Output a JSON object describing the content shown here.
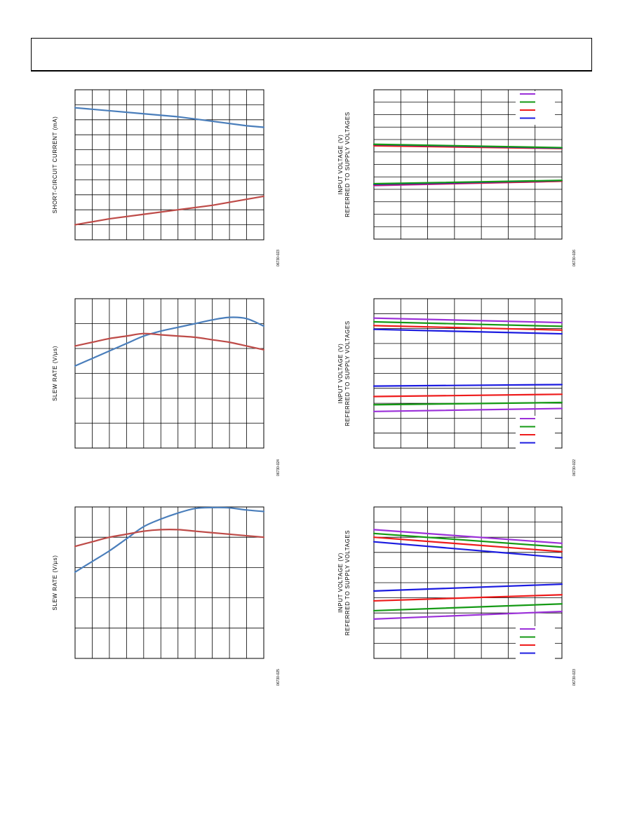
{
  "page": {
    "header_text": ""
  },
  "colors": {
    "blue": "#4a7ebb",
    "red": "#be4b48",
    "purple": "#9b30d9",
    "green": "#159a15",
    "bright_red": "#ee1c1c",
    "navy": "#1c1ce0",
    "grid": "#000000"
  },
  "chart_data": [
    {
      "id": "short-circuit-current",
      "type": "line",
      "title": "",
      "xlabel": "",
      "ylabel": "SHORT-CIRCUIT CURRENT (mA)",
      "figure_code": "06730-023",
      "grid": true,
      "x_divisions": 11,
      "y_divisions": 10,
      "xlim": [
        0,
        11
      ],
      "ylim": [
        0,
        10
      ],
      "series": [
        {
          "color": "blue",
          "x": [
            0,
            2,
            4,
            6,
            8,
            10,
            11
          ],
          "y": [
            8.8,
            8.6,
            8.4,
            8.2,
            7.9,
            7.6,
            7.5
          ]
        },
        {
          "color": "red",
          "x": [
            0,
            2,
            4,
            6,
            8,
            10,
            11
          ],
          "y": [
            1.0,
            1.4,
            1.7,
            2.0,
            2.3,
            2.7,
            2.9
          ]
        }
      ]
    },
    {
      "id": "slew-rate-1",
      "type": "line",
      "title": "",
      "xlabel": "",
      "ylabel": "SLEW RATE (V/µs)",
      "figure_code": "06730-024",
      "grid": true,
      "x_divisions": 11,
      "y_divisions": 6,
      "xlim": [
        0,
        11
      ],
      "ylim": [
        0,
        6
      ],
      "series": [
        {
          "color": "blue",
          "x": [
            0,
            1,
            2,
            3,
            4,
            5,
            6,
            7,
            8,
            9,
            10,
            11
          ],
          "y": [
            3.3,
            3.6,
            3.9,
            4.2,
            4.5,
            4.7,
            4.85,
            5.0,
            5.15,
            5.25,
            5.2,
            4.9
          ]
        },
        {
          "color": "red",
          "x": [
            0,
            1,
            2,
            3,
            4,
            5,
            6,
            7,
            8,
            9,
            10,
            11
          ],
          "y": [
            4.1,
            4.25,
            4.4,
            4.5,
            4.6,
            4.55,
            4.5,
            4.45,
            4.35,
            4.25,
            4.1,
            3.95
          ]
        }
      ]
    },
    {
      "id": "slew-rate-2",
      "type": "line",
      "title": "",
      "xlabel": "",
      "ylabel": "SLEW RATE (V/µs)",
      "figure_code": "06730-025",
      "grid": true,
      "x_divisions": 11,
      "y_divisions": 5,
      "xlim": [
        0,
        11
      ],
      "ylim": [
        0,
        5
      ],
      "series": [
        {
          "color": "blue",
          "x": [
            0,
            1,
            2,
            3,
            4,
            5,
            6,
            7,
            8,
            9,
            10,
            11
          ],
          "y": [
            2.85,
            3.2,
            3.55,
            3.95,
            4.35,
            4.6,
            4.8,
            4.95,
            4.98,
            4.97,
            4.9,
            4.85
          ]
        },
        {
          "color": "red",
          "x": [
            0,
            1,
            2,
            3,
            4,
            5,
            6,
            7,
            8,
            9,
            10,
            11
          ],
          "y": [
            3.7,
            3.85,
            4.0,
            4.1,
            4.2,
            4.25,
            4.25,
            4.2,
            4.15,
            4.1,
            4.05,
            4.0
          ]
        }
      ]
    },
    {
      "id": "input-voltage-1",
      "type": "line",
      "title": "",
      "xlabel": "",
      "ylabel": "INPUT VOLTAGE (V)\nREFERRED TO SUPPLY VOLTAGES",
      "figure_code": "06730-026",
      "grid": true,
      "x_divisions": 7,
      "y_divisions": 12,
      "xlim": [
        0,
        7
      ],
      "ylim": [
        0,
        12
      ],
      "legend": {
        "position": "top-right",
        "colors": [
          "purple",
          "green",
          "bright_red",
          "navy"
        ],
        "labels": [
          "",
          "",
          "",
          ""
        ]
      },
      "series": [
        {
          "color": "purple",
          "x": [
            0,
            7
          ],
          "y": [
            7.55,
            7.3
          ]
        },
        {
          "color": "bright_red",
          "x": [
            0,
            7
          ],
          "y": [
            7.5,
            7.28
          ]
        },
        {
          "color": "navy",
          "x": [
            0,
            7
          ],
          "y": [
            7.6,
            7.32
          ]
        },
        {
          "color": "green",
          "x": [
            0,
            7
          ],
          "y": [
            7.62,
            7.35
          ]
        },
        {
          "color": "purple",
          "x": [
            0,
            7
          ],
          "y": [
            4.3,
            4.65
          ]
        },
        {
          "color": "bright_red",
          "x": [
            0,
            7
          ],
          "y": [
            4.35,
            4.65
          ]
        },
        {
          "color": "navy",
          "x": [
            0,
            7
          ],
          "y": [
            4.4,
            4.7
          ]
        },
        {
          "color": "green",
          "x": [
            0,
            7
          ],
          "y": [
            4.45,
            4.72
          ]
        }
      ]
    },
    {
      "id": "input-voltage-2",
      "type": "line",
      "title": "",
      "xlabel": "",
      "ylabel": "INPUT VOLTAGE (V)\nREFERRED TO SUPPLY VOLTAGES",
      "figure_code": "06730-022",
      "grid": true,
      "x_divisions": 7,
      "y_divisions": 10,
      "xlim": [
        0,
        7
      ],
      "ylim": [
        0,
        10
      ],
      "legend": {
        "position": "bottom-right",
        "colors": [
          "purple",
          "green",
          "bright_red",
          "navy"
        ],
        "labels": [
          "",
          "",
          "",
          ""
        ]
      },
      "series": [
        {
          "color": "purple",
          "x": [
            0,
            7
          ],
          "y": [
            8.7,
            8.4
          ]
        },
        {
          "color": "green",
          "x": [
            0,
            7
          ],
          "y": [
            8.45,
            8.15
          ]
        },
        {
          "color": "bright_red",
          "x": [
            0,
            7
          ],
          "y": [
            8.2,
            7.9
          ]
        },
        {
          "color": "navy",
          "x": [
            0,
            7
          ],
          "y": [
            7.95,
            7.65
          ]
        },
        {
          "color": "navy",
          "x": [
            0,
            7
          ],
          "y": [
            4.15,
            4.25
          ]
        },
        {
          "color": "bright_red",
          "x": [
            0,
            7
          ],
          "y": [
            3.45,
            3.6
          ]
        },
        {
          "color": "green",
          "x": [
            0,
            7
          ],
          "y": [
            2.9,
            3.05
          ]
        },
        {
          "color": "purple",
          "x": [
            0,
            7
          ],
          "y": [
            2.45,
            2.65
          ]
        }
      ]
    },
    {
      "id": "input-voltage-3",
      "type": "line",
      "title": "",
      "xlabel": "",
      "ylabel": "INPUT VOLTAGE (V)\nREFERRED TO SUPPLY VOLTAGES",
      "figure_code": "06730-023",
      "grid": true,
      "x_divisions": 7,
      "y_divisions": 10,
      "xlim": [
        0,
        7
      ],
      "ylim": [
        0,
        10
      ],
      "legend": {
        "position": "bottom-right",
        "colors": [
          "purple",
          "green",
          "bright_red",
          "navy"
        ],
        "labels": [
          "",
          "",
          "",
          ""
        ]
      },
      "series": [
        {
          "color": "purple",
          "x": [
            0,
            7
          ],
          "y": [
            8.5,
            7.6
          ]
        },
        {
          "color": "green",
          "x": [
            0,
            7
          ],
          "y": [
            8.25,
            7.35
          ]
        },
        {
          "color": "bright_red",
          "x": [
            0,
            7
          ],
          "y": [
            8.0,
            7.05
          ]
        },
        {
          "color": "navy",
          "x": [
            0,
            7
          ],
          "y": [
            7.7,
            6.65
          ]
        },
        {
          "color": "navy",
          "x": [
            0,
            7
          ],
          "y": [
            4.45,
            4.9
          ]
        },
        {
          "color": "bright_red",
          "x": [
            0,
            7
          ],
          "y": [
            3.8,
            4.2
          ]
        },
        {
          "color": "green",
          "x": [
            0,
            7
          ],
          "y": [
            3.15,
            3.6
          ]
        },
        {
          "color": "purple",
          "x": [
            0,
            7
          ],
          "y": [
            2.6,
            3.1
          ]
        }
      ]
    }
  ]
}
